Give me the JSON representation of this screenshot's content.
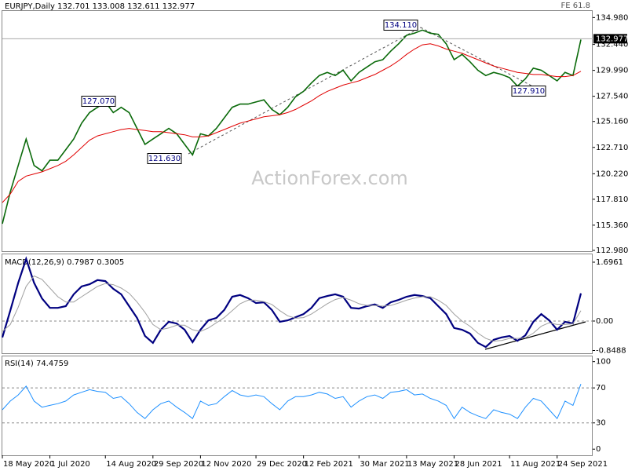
{
  "chart_data": [
    {
      "type": "line",
      "title": "EURJPY,Daily 132.701 133.008 132.611 132.977",
      "corner_label": "FE 61.8",
      "watermark": "ActionForex.com",
      "series": [
        {
          "color": "#0a6a0a",
          "values": [
            115.5,
            118.5,
            121,
            123.5,
            121,
            120.5,
            121.5,
            121.5,
            122.5,
            123.5,
            125,
            126,
            126.5,
            127,
            126,
            126.5,
            126,
            124.5,
            123,
            123.5,
            124,
            124.5,
            124,
            123,
            122,
            124,
            123.8,
            124.5,
            125.5,
            126.5,
            126.8,
            126.8,
            127,
            127.2,
            126.3,
            125.8,
            126.5,
            127.5,
            128,
            128.8,
            129.5,
            129.8,
            129.5,
            130,
            129,
            129.8,
            130.3,
            130.8,
            131,
            131.8,
            132.5,
            133.3,
            133.5,
            133.8,
            133.5,
            133.4,
            132.5,
            131,
            131.5,
            130.8,
            130,
            129.5,
            129.8,
            129.6,
            129.3,
            128.5,
            129.2,
            130.2,
            130,
            129.5,
            129,
            129.8,
            129.5,
            132.9
          ]
        },
        {
          "color": "#e00000",
          "values": [
            117.5,
            118.3,
            119.5,
            120,
            120.2,
            120.4,
            120.7,
            121,
            121.4,
            122,
            122.7,
            123.4,
            123.8,
            124,
            124.2,
            124.4,
            124.5,
            124.4,
            124.3,
            124.2,
            124.2,
            124.1,
            124,
            123.9,
            123.7,
            123.7,
            123.8,
            124.1,
            124.4,
            124.7,
            125,
            125.2,
            125.4,
            125.6,
            125.7,
            125.8,
            126,
            126.3,
            126.7,
            127.1,
            127.6,
            128,
            128.3,
            128.6,
            128.8,
            129,
            129.3,
            129.6,
            130,
            130.4,
            130.9,
            131.5,
            132,
            132.4,
            132.5,
            132.3,
            132,
            131.8,
            131.6,
            131.3,
            131,
            130.7,
            130.4,
            130.2,
            130,
            129.8,
            129.7,
            129.6,
            129.6,
            129.5,
            129.4,
            129.4,
            129.5,
            129.9
          ]
        }
      ],
      "current_price": 132.977,
      "annotations": [
        {
          "text": "127.070"
        },
        {
          "text": "121.630"
        },
        {
          "text": "134.110"
        },
        {
          "text": "127.910"
        }
      ],
      "ylim": [
        112.9,
        135.6
      ],
      "yticks": [
        {
          "value": 134.98,
          "label": "134.980"
        },
        {
          "value": 132.44,
          "label": "132.440"
        },
        {
          "value": 129.99,
          "label": "129.990"
        },
        {
          "value": 127.54,
          "label": "127.540"
        },
        {
          "value": 125.16,
          "label": "125.160"
        },
        {
          "value": 122.71,
          "label": "122.710"
        },
        {
          "value": 120.22,
          "label": "120.220"
        },
        {
          "value": 117.81,
          "label": "117.810"
        },
        {
          "value": 115.36,
          "label": "115.360"
        },
        {
          "value": 112.98,
          "label": "112.980"
        }
      ]
    },
    {
      "type": "line",
      "title": "MACD(12,26,9) 0.7987 0.3005",
      "series": [
        {
          "color": "#000080",
          "values": [
            -0.47,
            0.3,
            1.1,
            1.79,
            1.1,
            0.65,
            0.38,
            0.38,
            0.43,
            0.77,
            1.0,
            1.06,
            1.18,
            1.15,
            0.93,
            0.77,
            0.43,
            0.09,
            -0.43,
            -0.63,
            -0.25,
            -0.02,
            -0.07,
            -0.25,
            -0.61,
            -0.25,
            0.02,
            0.09,
            0.32,
            0.7,
            0.75,
            0.66,
            0.52,
            0.54,
            0.32,
            -0.02,
            0.02,
            0.11,
            0.2,
            0.38,
            0.66,
            0.72,
            0.77,
            0.7,
            0.38,
            0.36,
            0.43,
            0.48,
            0.38,
            0.54,
            0.61,
            0.7,
            0.75,
            0.72,
            0.66,
            0.43,
            0.2,
            -0.2,
            -0.25,
            -0.36,
            -0.63,
            -0.75,
            -0.54,
            -0.47,
            -0.43,
            -0.57,
            -0.41,
            -0.02,
            0.2,
            0.02,
            -0.25,
            -0.02,
            -0.07,
            0.7987
          ]
        },
        {
          "color": "#a0a0a0",
          "values": [
            -0.3,
            -0.1,
            0.4,
            1.0,
            1.3,
            1.2,
            0.95,
            0.7,
            0.55,
            0.55,
            0.7,
            0.85,
            1.0,
            1.08,
            1.05,
            0.95,
            0.8,
            0.55,
            0.25,
            -0.1,
            -0.25,
            -0.2,
            -0.12,
            -0.12,
            -0.25,
            -0.3,
            -0.2,
            -0.05,
            0.1,
            0.3,
            0.5,
            0.6,
            0.6,
            0.56,
            0.48,
            0.3,
            0.15,
            0.08,
            0.1,
            0.2,
            0.35,
            0.5,
            0.62,
            0.68,
            0.6,
            0.5,
            0.45,
            0.45,
            0.43,
            0.45,
            0.52,
            0.6,
            0.66,
            0.7,
            0.7,
            0.6,
            0.45,
            0.2,
            0,
            -0.15,
            -0.35,
            -0.5,
            -0.58,
            -0.56,
            -0.5,
            -0.5,
            -0.48,
            -0.35,
            -0.15,
            -0.05,
            -0.1,
            -0.1,
            -0.08,
            0.3005
          ]
        }
      ],
      "levels": [
        0
      ],
      "ylim": [
        -0.928,
        1.922
      ],
      "yticks": [
        1.6961,
        {
          "value": 0,
          "label": "0.00"
        },
        -0.8488
      ]
    },
    {
      "type": "line",
      "title": "RSI(14) 74.4759",
      "series": [
        {
          "color": "#1e90ff",
          "values": [
            45,
            55,
            62,
            72,
            55,
            48,
            50,
            52,
            55,
            62,
            65,
            68,
            66,
            65,
            58,
            60,
            52,
            42,
            35,
            45,
            52,
            55,
            48,
            42,
            35,
            55,
            50,
            52,
            60,
            67,
            62,
            60,
            62,
            60,
            52,
            45,
            55,
            60,
            60,
            62,
            65,
            63,
            58,
            60,
            48,
            55,
            60,
            62,
            58,
            65,
            66,
            68,
            62,
            63,
            58,
            55,
            50,
            35,
            48,
            42,
            38,
            35,
            45,
            42,
            40,
            35,
            48,
            58,
            55,
            45,
            35,
            55,
            50,
            74.4759
          ]
        }
      ],
      "levels": [
        70,
        30
      ],
      "ylim": [
        -7,
        106
      ],
      "yticks": [
        100,
        70,
        30,
        0
      ],
      "categories": [
        "18 May 2020",
        null,
        null,
        null,
        null,
        null,
        "1 Jul 2020",
        null,
        null,
        null,
        null,
        null,
        null,
        "14 Aug 2020",
        null,
        null,
        null,
        null,
        null,
        "29 Sep 2020",
        null,
        null,
        null,
        null,
        null,
        "12 Nov 2020",
        null,
        null,
        null,
        null,
        null,
        null,
        "29 Dec 2020",
        null,
        null,
        null,
        null,
        null,
        "12 Feb 2021",
        null,
        null,
        null,
        null,
        null,
        null,
        "30 Mar 2021",
        null,
        null,
        null,
        null,
        null,
        "13 May 2021",
        null,
        null,
        null,
        null,
        null,
        "28 Jun 2021",
        null,
        null,
        null,
        null,
        null,
        null,
        "11 Aug 2021",
        null,
        null,
        null,
        null,
        null,
        "24 Sep 2021",
        null,
        null,
        null
      ]
    }
  ]
}
